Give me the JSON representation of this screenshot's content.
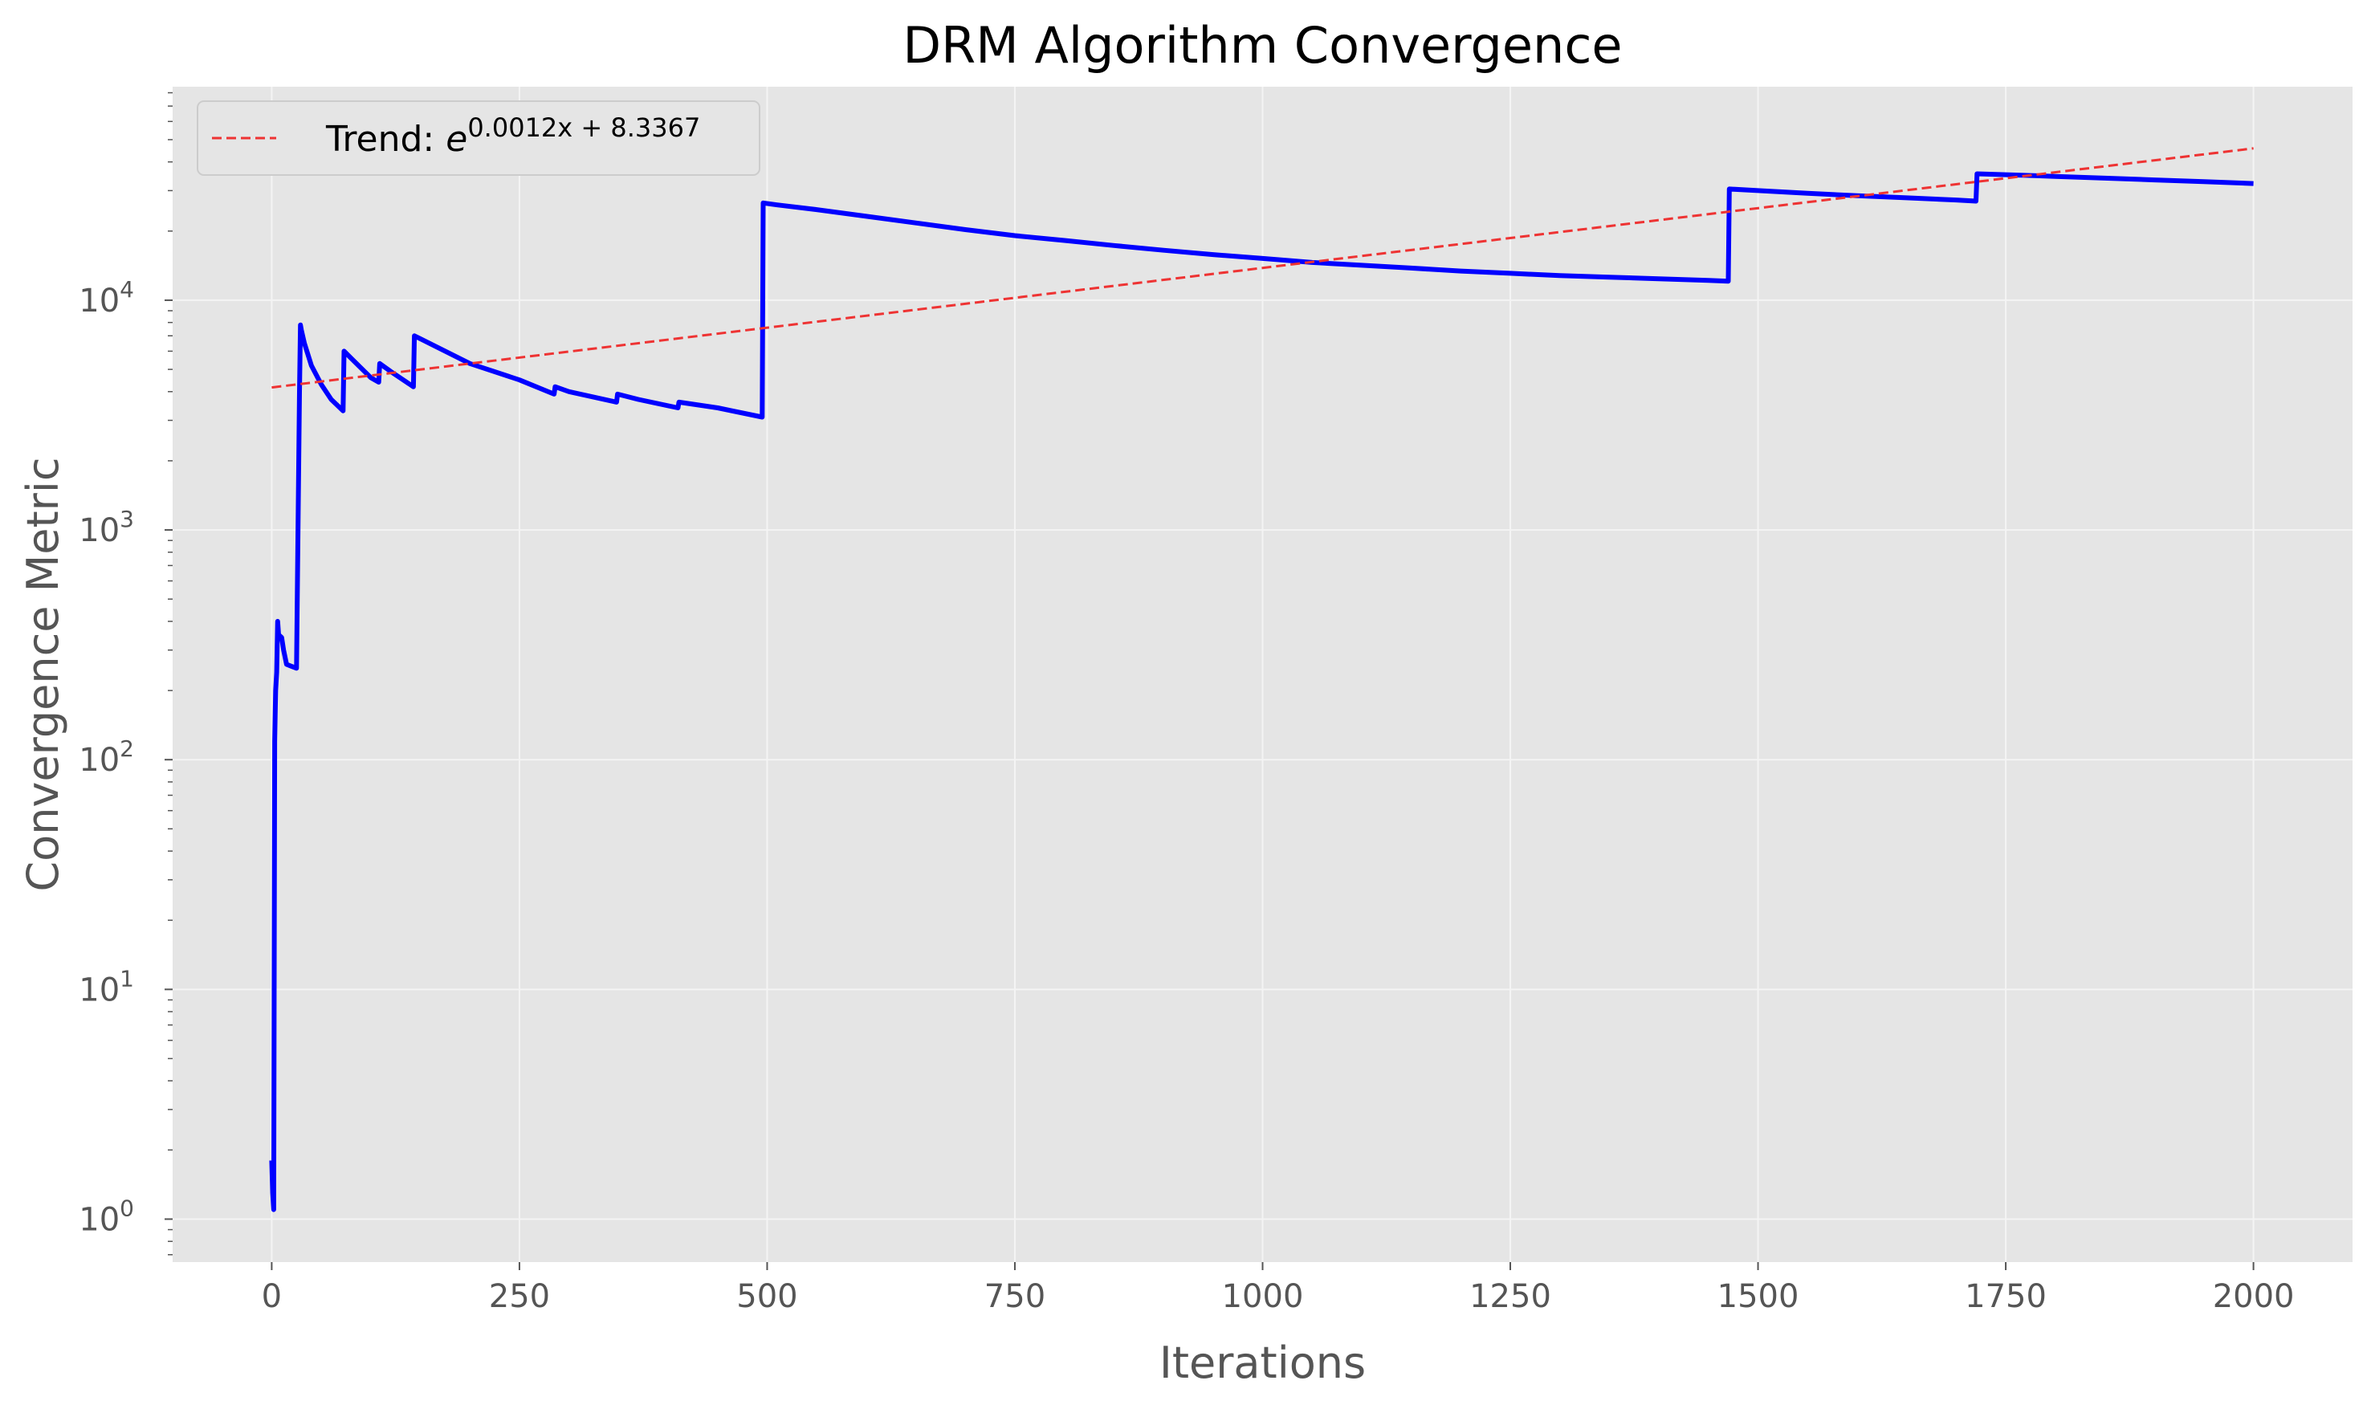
{
  "chart_data": {
    "type": "line",
    "title": "DRM Algorithm Convergence",
    "xlabel": "Iterations",
    "ylabel": "Convergence Metric",
    "xlim": [
      -100,
      2100
    ],
    "ylim": [
      0.65,
      85000
    ],
    "yscale": "log",
    "grid": true,
    "legend_position": "top-left",
    "x_ticks": [
      0,
      250,
      500,
      750,
      1000,
      1250,
      1500,
      1750,
      2000
    ],
    "x_tick_labels": [
      "0",
      "250",
      "500",
      "750",
      "1000",
      "1250",
      "1500",
      "1750",
      "2000"
    ],
    "y_ticks": [
      1,
      10,
      100,
      1000,
      10000
    ],
    "y_tick_labels": [
      {
        "base": "10",
        "exp": "0"
      },
      {
        "base": "10",
        "exp": "1"
      },
      {
        "base": "10",
        "exp": "2"
      },
      {
        "base": "10",
        "exp": "3"
      },
      {
        "base": "10",
        "exp": "4"
      }
    ],
    "series": [
      {
        "color": "#0000ff",
        "style": "solid",
        "x": [
          0,
          1,
          2,
          3,
          4,
          5,
          6,
          7,
          10,
          12,
          15,
          20,
          25,
          28,
          29,
          30,
          33,
          40,
          50,
          60,
          72,
          73,
          80,
          100,
          108,
          109,
          120,
          143,
          144,
          150,
          200,
          250,
          285,
          286,
          300,
          348,
          349,
          370,
          410,
          411,
          450,
          495,
          496,
          510,
          550,
          600,
          650,
          700,
          750,
          800,
          850,
          900,
          950,
          1000,
          1050,
          1100,
          1150,
          1200,
          1250,
          1300,
          1350,
          1400,
          1450,
          1470,
          1471,
          1500,
          1550,
          1600,
          1650,
          1700,
          1720,
          1721,
          1750,
          1800,
          1850,
          1900,
          1950,
          2000
        ],
        "y": [
          1.8,
          1.3,
          1.1,
          120,
          200,
          240,
          400,
          350,
          340,
          300,
          260,
          255,
          250,
          4000,
          7800,
          7400,
          6500,
          5200,
          4300,
          3700,
          3300,
          6000,
          5600,
          4600,
          4400,
          5300,
          4900,
          4200,
          7000,
          6800,
          5300,
          4500,
          3900,
          4200,
          4000,
          3600,
          3900,
          3700,
          3400,
          3600,
          3400,
          3100,
          26500,
          26000,
          24800,
          23200,
          21700,
          20300,
          19100,
          18200,
          17300,
          16500,
          15800,
          15200,
          14600,
          14200,
          13800,
          13400,
          13100,
          12800,
          12600,
          12400,
          12200,
          12100,
          30500,
          30000,
          29200,
          28500,
          27900,
          27300,
          27000,
          35500,
          35200,
          34600,
          34000,
          33400,
          32800,
          32200
        ]
      },
      {
        "name": "Trend: ",
        "name_exp_base": "e",
        "name_exp": "0.0012x + 8.3367",
        "color": "#ee3333",
        "style": "dashed",
        "x": [
          0,
          2000
        ],
        "y": [
          4170,
          45800
        ]
      }
    ]
  }
}
